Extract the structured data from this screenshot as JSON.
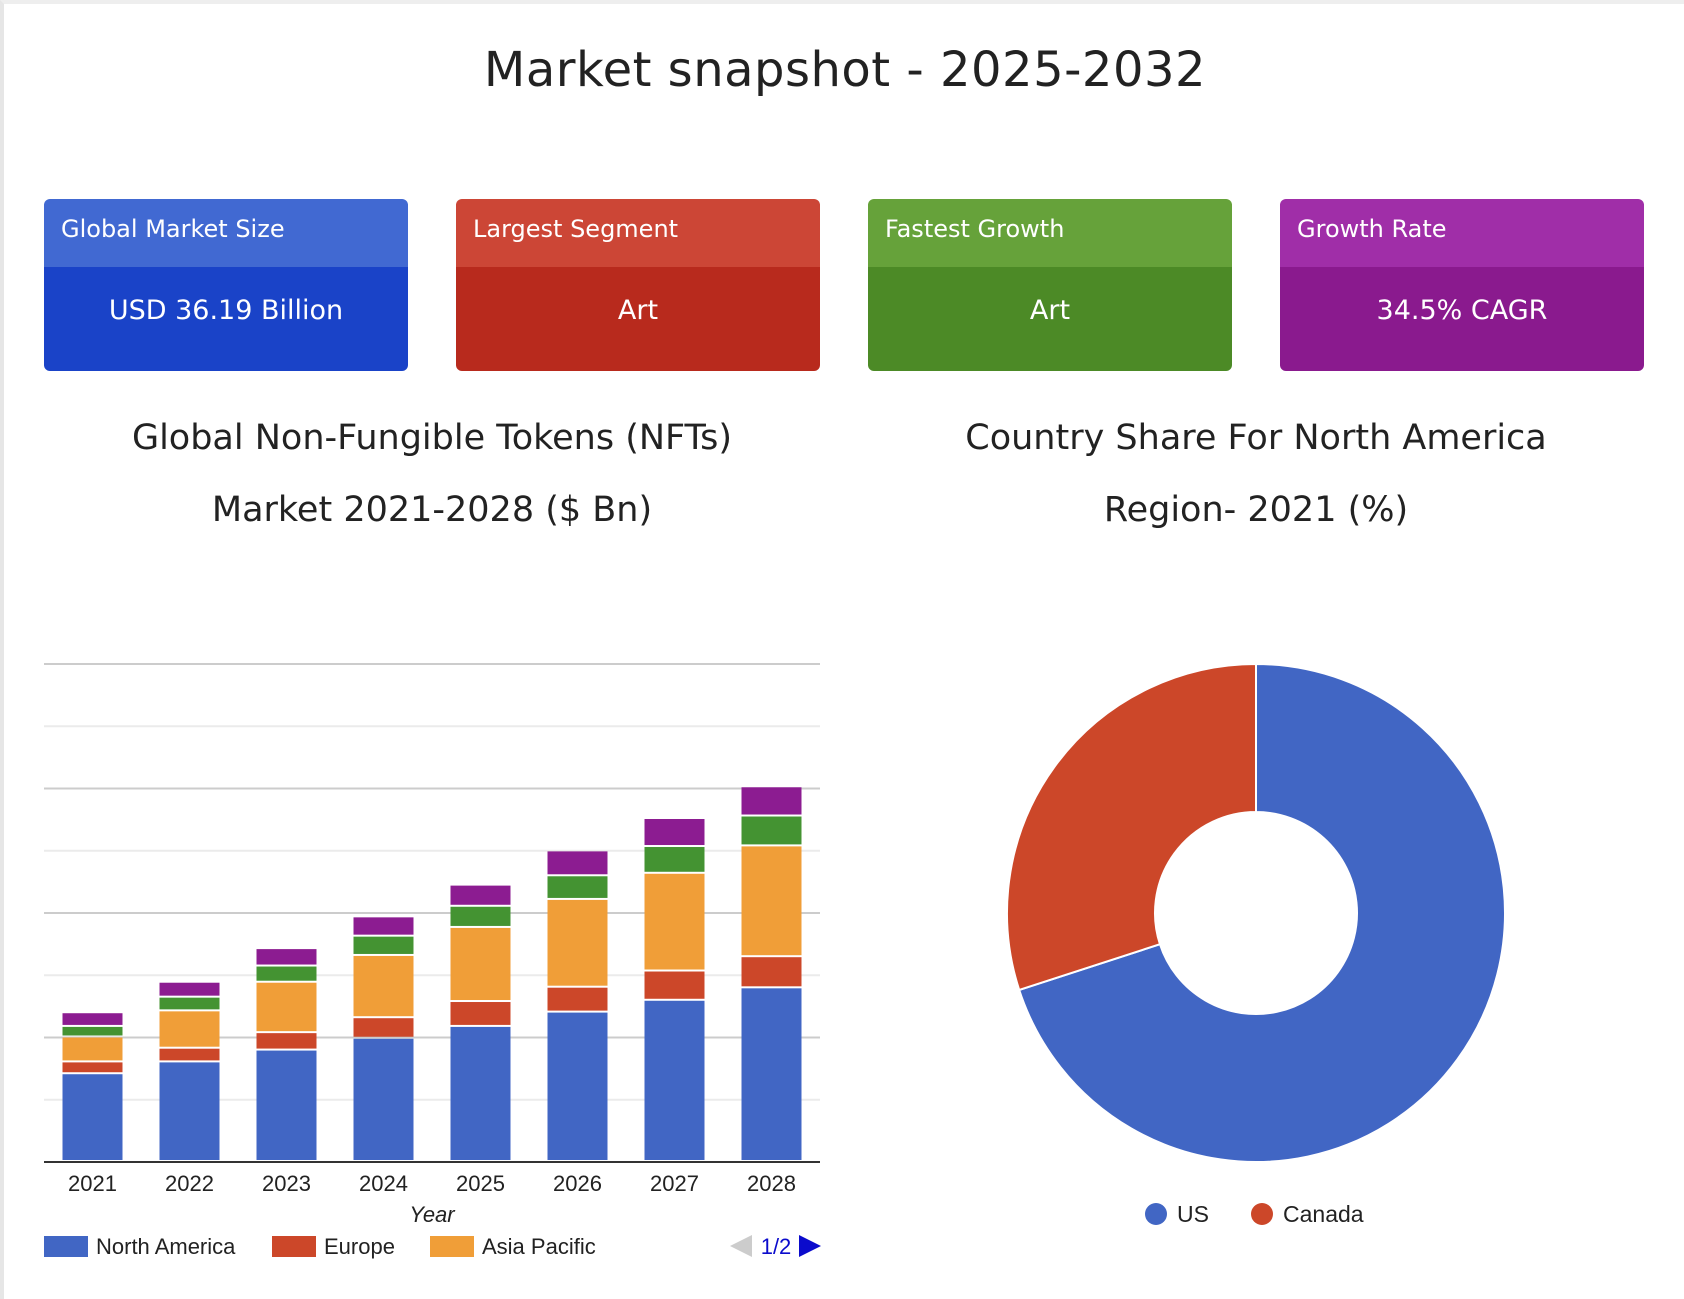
{
  "page_title": "Market snapshot - 2025-2032",
  "cards": [
    {
      "label": "Global Market Size",
      "value": "USD 36.19 Billion",
      "header_color": "#4169d2",
      "body_color": "#1a43c8"
    },
    {
      "label": "Largest Segment",
      "value": "Art",
      "header_color": "#cc4636",
      "body_color": "#b82a1d"
    },
    {
      "label": "Fastest Growth",
      "value": "Art",
      "header_color": "#66a23a",
      "body_color": "#4c8a26"
    },
    {
      "label": "Growth Rate",
      "value": "34.5% CAGR",
      "header_color": "#a02ea8",
      "body_color": "#8a1a8e"
    }
  ],
  "chart_data": [
    {
      "type": "bar",
      "stacked": true,
      "title_lines": [
        "Global Non-Fungible Tokens (NFTs)",
        "Market 2021-2028 ($ Bn)"
      ],
      "xlabel": "Year",
      "ylabel": "",
      "ylim": [
        0,
        80
      ],
      "grid": true,
      "categories": [
        "2021",
        "2022",
        "2023",
        "2024",
        "2025",
        "2026",
        "2027",
        "2028"
      ],
      "series": [
        {
          "name": "North America",
          "color": "#4166c4",
          "values": [
            14.1,
            16.0,
            17.9,
            19.8,
            21.7,
            24.0,
            25.9,
            27.9
          ]
        },
        {
          "name": "Europe",
          "color": "#cc4729",
          "values": [
            1.9,
            2.2,
            2.8,
            3.3,
            4.0,
            4.0,
            4.7,
            5.0
          ]
        },
        {
          "name": "Asia Pacific",
          "color": "#f09e38",
          "values": [
            4.0,
            6.0,
            8.1,
            10.0,
            11.9,
            14.1,
            15.7,
            17.8
          ]
        },
        {
          "color": "#449332",
          "values": [
            1.7,
            2.2,
            2.6,
            3.1,
            3.4,
            3.8,
            4.3,
            4.8
          ]
        },
        {
          "color": "#8c1c91",
          "values": [
            2.2,
            2.4,
            2.8,
            3.1,
            3.4,
            4.0,
            4.5,
            4.7
          ]
        }
      ],
      "legend": {
        "placement": "bottom",
        "page": "1/2"
      }
    },
    {
      "type": "pie",
      "donut": true,
      "title_lines": [
        "Country Share For North America",
        "Region- 2021 (%)"
      ],
      "slices": [
        {
          "name": "US",
          "value": 70,
          "color": "#4166c4"
        },
        {
          "name": "Canada",
          "value": 30,
          "color": "#cc4729"
        }
      ],
      "legend": {
        "placement": "bottom"
      }
    }
  ]
}
